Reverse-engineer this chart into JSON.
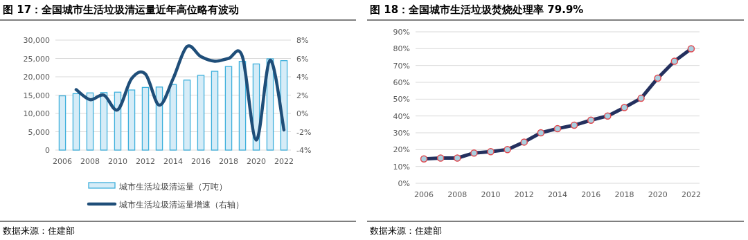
{
  "chart_data": [
    {
      "type": "bar",
      "title": "图 17：全国城市生活垃圾清运量近年高位略有波动",
      "categories": [
        "2006",
        null,
        "2008",
        null,
        "2010",
        null,
        "2012",
        null,
        "2014",
        null,
        "2016",
        null,
        "2018",
        null,
        "2020",
        null,
        "2022"
      ],
      "series": [
        {
          "name": "城市生活垃圾清运量（万吨）",
          "type": "bar",
          "color": "#3eb0dc",
          "values": [
            14800,
            15400,
            15600,
            15700,
            15800,
            16400,
            17100,
            17200,
            17900,
            19100,
            20400,
            21500,
            22800,
            24200,
            23500,
            24900,
            24400
          ]
        },
        {
          "name": "城市生活垃圾清运量增速（右轴）",
          "type": "line",
          "axis": "y2",
          "color": "#1f4e79",
          "values": [
            null,
            2.6,
            1.5,
            2.0,
            0.4,
            3.8,
            4.3,
            0.9,
            3.8,
            7.3,
            6.2,
            5.7,
            6.0,
            6.2,
            -2.9,
            5.8,
            -1.8
          ]
        }
      ],
      "ylim": [
        0,
        30000
      ],
      "yticks": [
        {
          "value": 0,
          "label": "0"
        },
        {
          "value": 5000,
          "label": "5,000"
        },
        {
          "value": 10000,
          "label": "10,000"
        },
        {
          "value": 15000,
          "label": "15,000"
        },
        {
          "value": 20000,
          "label": "20,000"
        },
        {
          "value": 25000,
          "label": "25,000"
        },
        {
          "value": 30000,
          "label": "30,000"
        }
      ],
      "y2lim": [
        -4,
        8
      ],
      "y2ticks": [
        {
          "value": -4,
          "label": "-4%"
        },
        {
          "value": -2,
          "label": "-2%"
        },
        {
          "value": 0,
          "label": "0%"
        },
        {
          "value": 2,
          "label": "2%"
        },
        {
          "value": 4,
          "label": "4%"
        },
        {
          "value": 6,
          "label": "6%"
        },
        {
          "value": 8,
          "label": "8%"
        }
      ],
      "grid": "y",
      "legend": "bottom",
      "annotations": [
        "数据来源：住建部"
      ]
    },
    {
      "type": "line",
      "title": "图 18：全国城市生活垃圾焚烧处理率 79.9%",
      "categories": [
        "2006",
        null,
        "2008",
        null,
        "2010",
        null,
        "2012",
        null,
        "2014",
        null,
        "2016",
        null,
        "2018",
        null,
        "2020",
        null,
        "2022"
      ],
      "series": [
        {
          "color": "#24305e",
          "values": [
            14.5,
            15,
            15,
            18,
            18.8,
            20,
            24.5,
            30,
            32.5,
            34.5,
            37.5,
            40,
            45,
            50.5,
            62.5,
            72.5,
            79.9
          ]
        }
      ],
      "ylim": [
        0,
        90
      ],
      "yticks": [
        {
          "value": 0,
          "label": "0%"
        },
        {
          "value": 10,
          "label": "10%"
        },
        {
          "value": 20,
          "label": "20%"
        },
        {
          "value": 30,
          "label": "30%"
        },
        {
          "value": 40,
          "label": "40%"
        },
        {
          "value": 50,
          "label": "50%"
        },
        {
          "value": 60,
          "label": "60%"
        },
        {
          "value": 70,
          "label": "70%"
        },
        {
          "value": 80,
          "label": "80%"
        },
        {
          "value": 90,
          "label": "90%"
        }
      ],
      "grid": "y",
      "marker": "circle",
      "annotations": [
        "数据来源：住建部"
      ]
    }
  ]
}
